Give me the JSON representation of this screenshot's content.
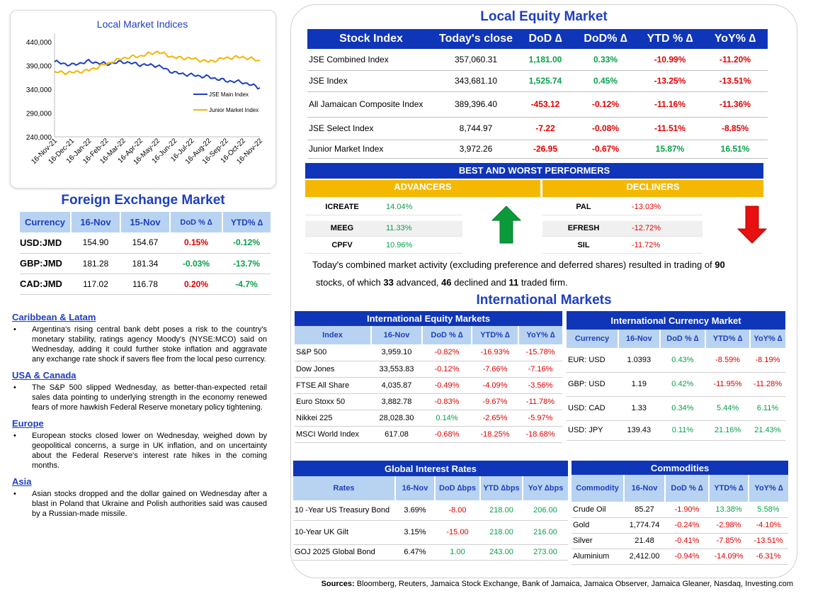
{
  "chart": {
    "title": "Local Market Indices",
    "y_ticks": [
      "440,000",
      "390,000",
      "340,000",
      "290,000",
      "240,000"
    ],
    "x_ticks": [
      "16-Nov-21",
      "16-Dec-21",
      "16-Jan-22",
      "16-Feb-22",
      "16-Mar-22",
      "16-Apr-22",
      "16-May-22",
      "16-Jun-22",
      "16-Jul-22",
      "16-Aug-22",
      "16-Sep-22",
      "16-Oct-22",
      "16-Nov-22"
    ],
    "legend": [
      "JSE Main Index",
      "Junior Market Index"
    ],
    "colors": {
      "jse": "#1f3fbf",
      "junior": "#f2b600"
    }
  },
  "chart_data": {
    "type": "line",
    "title": "Local Market Indices",
    "x": [
      "16-Nov-21",
      "16-Dec-21",
      "16-Jan-22",
      "16-Feb-22",
      "16-Mar-22",
      "16-Apr-22",
      "16-May-22",
      "16-Jun-22",
      "16-Jul-22",
      "16-Aug-22",
      "16-Sep-22",
      "16-Oct-22",
      "16-Nov-22"
    ],
    "ylim": [
      240000,
      440000
    ],
    "series": [
      {
        "name": "JSE Main Index",
        "values": [
          398000,
          391000,
          399000,
          393000,
          398000,
          392000,
          390000,
          375000,
          370000,
          366000,
          358000,
          355000,
          343000
        ]
      },
      {
        "name": "Junior Market Index",
        "values": [
          376000,
          375000,
          380000,
          393000,
          406000,
          410000,
          419000,
          407000,
          405000,
          398000,
          406000,
          408000,
          400000
        ]
      }
    ]
  },
  "fx": {
    "title": "Foreign Exchange Market",
    "headers": [
      "Currency",
      "16-Nov",
      "15-Nov",
      "DoD % ∆",
      "YTD% ∆"
    ],
    "rows": [
      {
        "cur": "USD:JMD",
        "a": "154.90",
        "b": "154.67",
        "dod": "0.15%",
        "ytd": "-0.12%",
        "dod_s": "neg",
        "ytd_s": "pos"
      },
      {
        "cur": "GBP:JMD",
        "a": "181.28",
        "b": "181.34",
        "dod": "-0.03%",
        "ytd": "-13.7%",
        "dod_s": "pos",
        "ytd_s": "pos"
      },
      {
        "cur": "CAD:JMD",
        "a": "117.02",
        "b": "116.78",
        "dod": "0.20%",
        "ytd": "-4.7%",
        "dod_s": "neg",
        "ytd_s": "pos"
      }
    ]
  },
  "news": [
    {
      "region": "Caribbean & Latam",
      "text": "Argentina's rising central bank debt poses a risk to the country's monetary stability, ratings agency Moody's (NYSE:MCO) said on Wednesday, adding it could further stoke inflation and aggravate any exchange rate shock if savers flee from the local peso currency."
    },
    {
      "region": "USA & Canada",
      "text": "The S&P 500 slipped Wednesday, as better-than-expected retail sales data pointing to underlying strength in the economy renewed fears of more hawkish Federal Reserve monetary policy tightening."
    },
    {
      "region": "Europe",
      "text": "European stocks closed lower on Wednesday, weighed down by geopolitical concerns, a surge in UK inflation, and on uncertainty about the Federal Reserve's interest rate hikes in the coming months."
    },
    {
      "region": "Asia",
      "text": "Asian stocks dropped and the dollar gained on Wednesday after a blast in Poland that Ukraine and Polish authorities said was caused by a Russian-made missile."
    }
  ],
  "equity": {
    "title": "Local Equity Market",
    "headers": [
      "Stock Index",
      "Today's close",
      "DoD ∆",
      "DoD% ∆",
      "YTD % ∆",
      "YoY% ∆"
    ],
    "rows": [
      {
        "name": "JSE Combined Index",
        "close": "357,060.31",
        "dod": "1,181.00",
        "dodp": "0.33%",
        "ytd": "-10.99%",
        "yoy": "-11.20%",
        "s": "pos"
      },
      {
        "name": "JSE Index",
        "close": "343,681.10",
        "dod": "1,525.74",
        "dodp": "0.45%",
        "ytd": "-13.25%",
        "yoy": "-13.51%",
        "s": "pos"
      },
      {
        "name": "All Jamaican Composite Index",
        "close": "389,396.40",
        "dod": "-453.12",
        "dodp": "-0.12%",
        "ytd": "-11.16%",
        "yoy": "-11.36%",
        "s": "neg"
      },
      {
        "name": "JSE Select Index",
        "close": "8,744.97",
        "dod": "-7.22",
        "dodp": "-0.08%",
        "ytd": "-11.51%",
        "yoy": "-8.85%",
        "s": "neg"
      },
      {
        "name": "Junior Market Index",
        "close": "3,972.26",
        "dod": "-26.95",
        "dodp": "-0.67%",
        "ytd": "15.87%",
        "yoy": "16.51%",
        "s": "neg"
      }
    ]
  },
  "performers": {
    "title": "BEST AND WORST PERFORMERS",
    "adv_label": "ADVANCERS",
    "dec_label": "DECLINERS",
    "advancers": [
      {
        "sym": "ICREATE",
        "pct": "14.04%"
      },
      {
        "sym": "MEEG",
        "pct": "11.33%"
      },
      {
        "sym": "CPFV",
        "pct": "10.96%"
      }
    ],
    "decliners": [
      {
        "sym": "PAL",
        "pct": "-13.03%"
      },
      {
        "sym": "EFRESH",
        "pct": "-12.72%"
      },
      {
        "sym": "SIL",
        "pct": "-11.72%"
      }
    ]
  },
  "summary": {
    "p1": "Today's combined market activity (excluding preference and deferred shares) resulted in trading of ",
    "n1": "90",
    "p2": "stocks, of which ",
    "n2": "33",
    "p3": " advanced, ",
    "n3": "46",
    "p4": " declined and ",
    "n4": "11",
    "p5": " traded firm."
  },
  "intl": {
    "title": "International Markets",
    "equity": {
      "title": "International Equity Markets",
      "headers": [
        "Index",
        "16-Nov",
        "DoD % ∆",
        "YTD% ∆",
        "YoY% ∆"
      ],
      "rows": [
        {
          "name": "S&P 500",
          "v": "3,959.10",
          "dod": "-0.82%",
          "ytd": "-16.93%",
          "yoy": "-15.78%",
          "ds": "neg",
          "ys": "neg",
          "yy": "neg"
        },
        {
          "name": "Dow Jones",
          "v": "33,553.83",
          "dod": "-0.12%",
          "ytd": "-7.66%",
          "yoy": "-7.16%",
          "ds": "neg",
          "ys": "neg",
          "yy": "neg"
        },
        {
          "name": "FTSE All Share",
          "v": "4,035.87",
          "dod": "-0.49%",
          "ytd": "-4.09%",
          "yoy": "-3.56%",
          "ds": "neg",
          "ys": "neg",
          "yy": "neg"
        },
        {
          "name": "Euro Stoxx 50",
          "v": "3,882.78",
          "dod": "-0.83%",
          "ytd": "-9.67%",
          "yoy": "-11.78%",
          "ds": "neg",
          "ys": "neg",
          "yy": "neg"
        },
        {
          "name": "Nikkei 225",
          "v": "28,028.30",
          "dod": "0.14%",
          "ytd": "-2.65%",
          "yoy": "-5.97%",
          "ds": "pos",
          "ys": "neg",
          "yy": "neg"
        },
        {
          "name": "MSCI World Index",
          "v": "617.08",
          "dod": "-0.68%",
          "ytd": "-18.25%",
          "yoy": "-18.68%",
          "ds": "neg",
          "ys": "neg",
          "yy": "neg"
        }
      ]
    },
    "currency": {
      "title": "International Currency Market",
      "headers": [
        "Currency",
        "16-Nov",
        "DoD % ∆",
        "YTD% ∆",
        "YoY% ∆"
      ],
      "rows": [
        {
          "name": "EUR: USD",
          "v": "1.0393",
          "dod": "0.43%",
          "ytd": "-8.59%",
          "yoy": "-8.19%",
          "ds": "pos",
          "ys": "neg",
          "yy": "neg"
        },
        {
          "name": "GBP: USD",
          "v": "1.19",
          "dod": "0.42%",
          "ytd": "-11.95%",
          "yoy": "-11.28%",
          "ds": "pos",
          "ys": "neg",
          "yy": "neg"
        },
        {
          "name": "USD: CAD",
          "v": "1.33",
          "dod": "0.34%",
          "ytd": "5.44%",
          "yoy": "6.11%",
          "ds": "pos",
          "ys": "pos",
          "yy": "pos"
        },
        {
          "name": "USD: JPY",
          "v": "139.43",
          "dod": "0.11%",
          "ytd": "21.16%",
          "yoy": "21.43%",
          "ds": "pos",
          "ys": "pos",
          "yy": "pos"
        }
      ]
    },
    "rates": {
      "title": "Global Interest Rates",
      "headers": [
        "Rates",
        "16-Nov",
        "DoD ∆bps",
        "YTD ∆bps",
        "YoY ∆bps"
      ],
      "rows": [
        {
          "name": "10 -Year US Treasury Bond",
          "v": "3.69%",
          "dod": "-8.00",
          "ytd": "218.00",
          "yoy": "206.00",
          "ds": "neg"
        },
        {
          "name": "10-Year UK Gilt",
          "v": "3.15%",
          "dod": "-15.00",
          "ytd": "218.00",
          "yoy": "216.00",
          "ds": "neg"
        },
        {
          "name": "GOJ 2025 Global Bond",
          "v": "6.47%",
          "dod": "1.00",
          "ytd": "243.00",
          "yoy": "273.00",
          "ds": "pos"
        }
      ]
    },
    "commodities": {
      "title": "Commodities",
      "headers": [
        "Commodity",
        "16-Nov",
        "DoD % ∆",
        "YTD% ∆",
        "YoY% ∆"
      ],
      "rows": [
        {
          "name": "Crude Oil",
          "v": "85.27",
          "dod": "-1.90%",
          "ytd": "13.38%",
          "yoy": "5.58%",
          "ds": "neg",
          "ys": "pos",
          "yy": "pos"
        },
        {
          "name": "Gold",
          "v": "1,774.74",
          "dod": "-0.24%",
          "ytd": "-2.98%",
          "yoy": "-4.10%",
          "ds": "neg",
          "ys": "neg",
          "yy": "neg"
        },
        {
          "name": "Silver",
          "v": "21.48",
          "dod": "-0.41%",
          "ytd": "-7.85%",
          "yoy": "-13.51%",
          "ds": "neg",
          "ys": "neg",
          "yy": "neg"
        },
        {
          "name": "Aluminium",
          "v": "2,412.00",
          "dod": "-0.94%",
          "ytd": "-14.09%",
          "yoy": "-6.31%",
          "ds": "neg",
          "ys": "neg",
          "yy": "neg"
        }
      ]
    }
  },
  "sources": {
    "label": "Sources:",
    "text": " Bloomberg, Reuters, Jamaica Stock Exchange, Bank of Jamaica, Jamaica Observer, Jamaica Gleaner, Nasdaq, Investing.com"
  }
}
